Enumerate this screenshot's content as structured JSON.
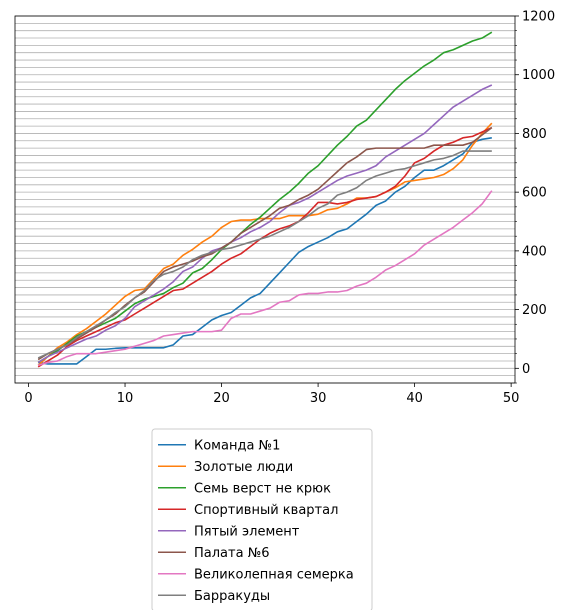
{
  "chart_data": {
    "type": "line",
    "title": "",
    "xlabel": "",
    "ylabel": "",
    "xlim": [
      -1.4,
      50.4
    ],
    "ylim": [
      -50,
      1200
    ],
    "x_ticks": [
      0,
      10,
      20,
      30,
      40,
      50
    ],
    "y_ticks": [
      0,
      200,
      400,
      600,
      800,
      1000,
      1200
    ],
    "y_axis_side": "right",
    "grid": "horizontal minor gridlines",
    "legend_placement": "below",
    "x": [
      1,
      2,
      3,
      4,
      5,
      6,
      7,
      8,
      9,
      10,
      11,
      12,
      13,
      14,
      15,
      16,
      17,
      18,
      19,
      20,
      21,
      22,
      23,
      24,
      25,
      26,
      27,
      28,
      29,
      30,
      31,
      32,
      33,
      34,
      35,
      36,
      37,
      38,
      39,
      40,
      41,
      42,
      43,
      44,
      45,
      46,
      47,
      48
    ],
    "series": [
      {
        "name": "Команда №1",
        "color": "#1f77b4",
        "values": [
          20,
          15,
          15,
          15,
          15,
          40,
          65,
          65,
          68,
          70,
          70,
          70,
          70,
          70,
          80,
          110,
          115,
          140,
          165,
          180,
          190,
          215,
          240,
          255,
          290,
          325,
          360,
          395,
          415,
          430,
          445,
          465,
          475,
          500,
          525,
          555,
          570,
          600,
          620,
          650,
          675,
          675,
          690,
          710,
          730,
          770,
          780,
          785
        ]
      },
      {
        "name": "Золотые люди",
        "color": "#ff7f0e",
        "values": [
          10,
          40,
          70,
          90,
          115,
          135,
          160,
          185,
          215,
          245,
          265,
          270,
          305,
          340,
          355,
          385,
          405,
          430,
          450,
          480,
          500,
          505,
          505,
          510,
          510,
          510,
          520,
          520,
          520,
          525,
          540,
          545,
          560,
          580,
          580,
          585,
          600,
          615,
          635,
          640,
          645,
          650,
          660,
          680,
          710,
          760,
          800,
          835
        ]
      },
      {
        "name": "Семь верст не крюк",
        "color": "#2ca02c",
        "values": [
          20,
          40,
          60,
          85,
          110,
          125,
          140,
          155,
          170,
          195,
          220,
          235,
          245,
          255,
          275,
          290,
          325,
          340,
          370,
          405,
          430,
          460,
          490,
          515,
          545,
          575,
          600,
          630,
          665,
          690,
          725,
          760,
          790,
          825,
          845,
          880,
          915,
          950,
          980,
          1005,
          1030,
          1050,
          1075,
          1085,
          1100,
          1115,
          1125,
          1145
        ]
      },
      {
        "name": "Спортивный квартал",
        "color": "#d62728",
        "values": [
          5,
          25,
          45,
          75,
          95,
          110,
          125,
          140,
          155,
          165,
          185,
          205,
          225,
          245,
          265,
          270,
          290,
          310,
          330,
          355,
          375,
          390,
          415,
          440,
          460,
          475,
          485,
          500,
          530,
          565,
          565,
          560,
          565,
          575,
          580,
          585,
          600,
          620,
          655,
          700,
          715,
          740,
          760,
          770,
          785,
          790,
          805,
          820
        ]
      },
      {
        "name": "Пятый элемент",
        "color": "#9467bd",
        "values": [
          20,
          40,
          55,
          70,
          85,
          100,
          110,
          130,
          145,
          170,
          210,
          230,
          250,
          270,
          295,
          330,
          345,
          375,
          400,
          410,
          430,
          445,
          465,
          480,
          500,
          530,
          555,
          565,
          580,
          600,
          620,
          640,
          655,
          665,
          675,
          690,
          720,
          740,
          760,
          780,
          800,
          830,
          860,
          890,
          910,
          930,
          950,
          965
        ]
      },
      {
        "name": "Палата №6",
        "color": "#8c564b",
        "values": [
          30,
          50,
          65,
          80,
          100,
          120,
          140,
          165,
          185,
          215,
          240,
          260,
          295,
          330,
          345,
          355,
          365,
          380,
          390,
          410,
          430,
          460,
          480,
          500,
          520,
          545,
          555,
          575,
          590,
          610,
          640,
          670,
          700,
          720,
          745,
          750,
          750,
          750,
          750,
          750,
          750,
          760,
          760,
          760,
          760,
          770,
          795,
          820
        ]
      },
      {
        "name": "Великолепная семерка",
        "color": "#e377c2",
        "values": [
          10,
          20,
          25,
          40,
          50,
          50,
          50,
          55,
          60,
          65,
          75,
          85,
          95,
          110,
          115,
          120,
          125,
          125,
          125,
          130,
          170,
          185,
          185,
          195,
          205,
          225,
          230,
          250,
          255,
          255,
          260,
          260,
          265,
          280,
          290,
          310,
          335,
          350,
          370,
          390,
          420,
          440,
          460,
          480,
          505,
          530,
          560,
          605
        ]
      },
      {
        "name": "Барракуды",
        "color": "#7f7f7f",
        "values": [
          35,
          50,
          65,
          80,
          105,
          125,
          145,
          165,
          190,
          210,
          240,
          265,
          300,
          320,
          330,
          345,
          370,
          385,
          395,
          405,
          410,
          420,
          430,
          440,
          450,
          465,
          480,
          500,
          520,
          545,
          560,
          590,
          600,
          615,
          640,
          655,
          665,
          675,
          680,
          690,
          700,
          710,
          715,
          725,
          740,
          740,
          740,
          740
        ]
      }
    ]
  }
}
